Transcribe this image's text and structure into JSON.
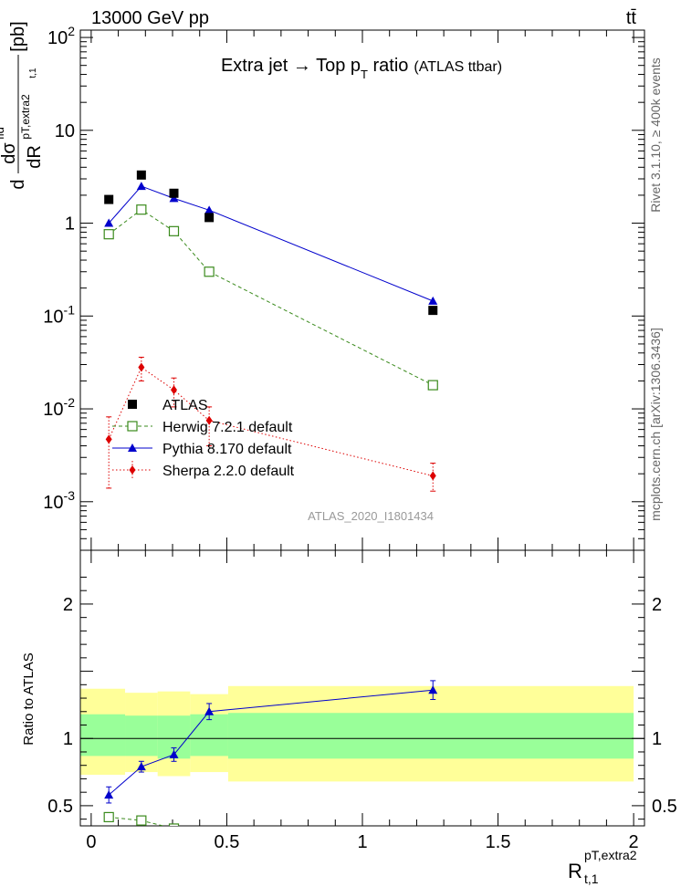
{
  "header": {
    "energy_label": "13000 GeV pp",
    "process_label": "tt̄"
  },
  "side": {
    "rivet_label": "Rivet 3.1.10, ≥ 400k events",
    "mcplots_label": "mcplots.cern.ch [arXiv:1306.3436]"
  },
  "chart_data": [
    {
      "type": "line",
      "panel": "main",
      "title": "Extra jet → Top p_T ratio",
      "title_main": "Extra jet → Top p",
      "title_sub": "T",
      "title_tail": " ratio",
      "title_note": "(ATLAS ttbar)",
      "analysis_id": "ATLAS_2020_I1801434",
      "ylabel": "dσ^fid/dR^{pT,extra2}_{t,1} [pb]",
      "ylabel_parts": {
        "d": "d",
        "dsigma": "dσ",
        "fid": "fid",
        "dR": "dR",
        "sub": "pT,extra2",
        "subsub": "t,1",
        "unit": "[pb]"
      },
      "yscale": "log",
      "ylim": [
        0.0003,
        120
      ],
      "xlim": [
        -0.04,
        2.04
      ],
      "y_tick_labels": [
        "10^-3",
        "10^-2",
        "10^-1",
        "1",
        "10",
        "10^2"
      ],
      "legend_position": "bottom-left",
      "series": [
        {
          "name": "ATLAS",
          "marker": "square-filled",
          "color": "#000000",
          "x": [
            0.065,
            0.185,
            0.305,
            0.435,
            1.26
          ],
          "y": [
            1.8,
            3.3,
            2.1,
            1.15,
            0.115
          ]
        },
        {
          "name": "Herwig 7.2.1 default",
          "marker": "square-open",
          "color": "#3a8a1c",
          "line": "dashed",
          "x": [
            0.065,
            0.185,
            0.305,
            0.435,
            1.26
          ],
          "y": [
            0.76,
            1.4,
            0.82,
            0.3,
            0.018
          ]
        },
        {
          "name": "Pythia 8.170 default",
          "marker": "triangle",
          "color": "#0000cc",
          "line": "solid",
          "x": [
            0.065,
            0.185,
            0.305,
            0.435,
            1.26
          ],
          "y": [
            1.0,
            2.5,
            1.85,
            1.38,
            0.145
          ]
        },
        {
          "name": "Sherpa 2.2.0 default",
          "marker": "diamond",
          "color": "#dd0000",
          "line": "dotted",
          "x": [
            0.065,
            0.185,
            0.305,
            0.435,
            1.26
          ],
          "y": [
            0.0047,
            0.028,
            0.016,
            0.0075,
            0.0019
          ],
          "yerr_low": [
            0.0033,
            0.008,
            0.0055,
            0.0035,
            0.0006
          ],
          "yerr_high": [
            0.0035,
            0.008,
            0.0055,
            0.003,
            0.0007
          ]
        }
      ]
    },
    {
      "type": "line",
      "panel": "ratio",
      "ylabel": "Ratio to ATLAS",
      "xlabel": "R^{pT,extra2}_{t,1}",
      "xlabel_parts": {
        "R": "R",
        "sup": "pT,extra2",
        "sub": "t,1"
      },
      "ylim": [
        0.35,
        2.4
      ],
      "y_ticks": [
        0.5,
        1,
        2
      ],
      "y_tick_labels": [
        "0.5",
        "1",
        "2"
      ],
      "x_ticks": [
        0,
        0.5,
        1,
        1.5,
        2
      ],
      "x_tick_labels": [
        "0",
        "0.5",
        "1",
        "1.5",
        "2"
      ],
      "bands": [
        {
          "x0": -0.04,
          "x1": 0.125,
          "inner": [
            0.87,
            1.18
          ],
          "outer": [
            0.73,
            1.37
          ]
        },
        {
          "x0": 0.125,
          "x1": 0.245,
          "inner": [
            0.87,
            1.17
          ],
          "outer": [
            0.75,
            1.34
          ]
        },
        {
          "x0": 0.245,
          "x1": 0.365,
          "inner": [
            0.85,
            1.17
          ],
          "outer": [
            0.72,
            1.35
          ]
        },
        {
          "x0": 0.365,
          "x1": 0.505,
          "inner": [
            0.87,
            1.18
          ],
          "outer": [
            0.75,
            1.33
          ]
        },
        {
          "x0": 0.505,
          "x1": 2.0,
          "inner": [
            0.85,
            1.19
          ],
          "outer": [
            0.68,
            1.39
          ]
        }
      ],
      "series": [
        {
          "name": "Herwig 7.2.1 default",
          "marker": "square-open",
          "color": "#3a8a1c",
          "line": "dashed",
          "x": [
            0.065,
            0.185,
            0.305
          ],
          "y": [
            0.415,
            0.39,
            0.33
          ]
        },
        {
          "name": "Pythia 8.170 default",
          "marker": "triangle",
          "color": "#0000cc",
          "line": "solid",
          "x": [
            0.065,
            0.185,
            0.305,
            0.435,
            1.26
          ],
          "y": [
            0.58,
            0.79,
            0.88,
            1.2,
            1.36
          ],
          "yerr": [
            0.06,
            0.04,
            0.05,
            0.06,
            0.07
          ]
        }
      ]
    }
  ]
}
